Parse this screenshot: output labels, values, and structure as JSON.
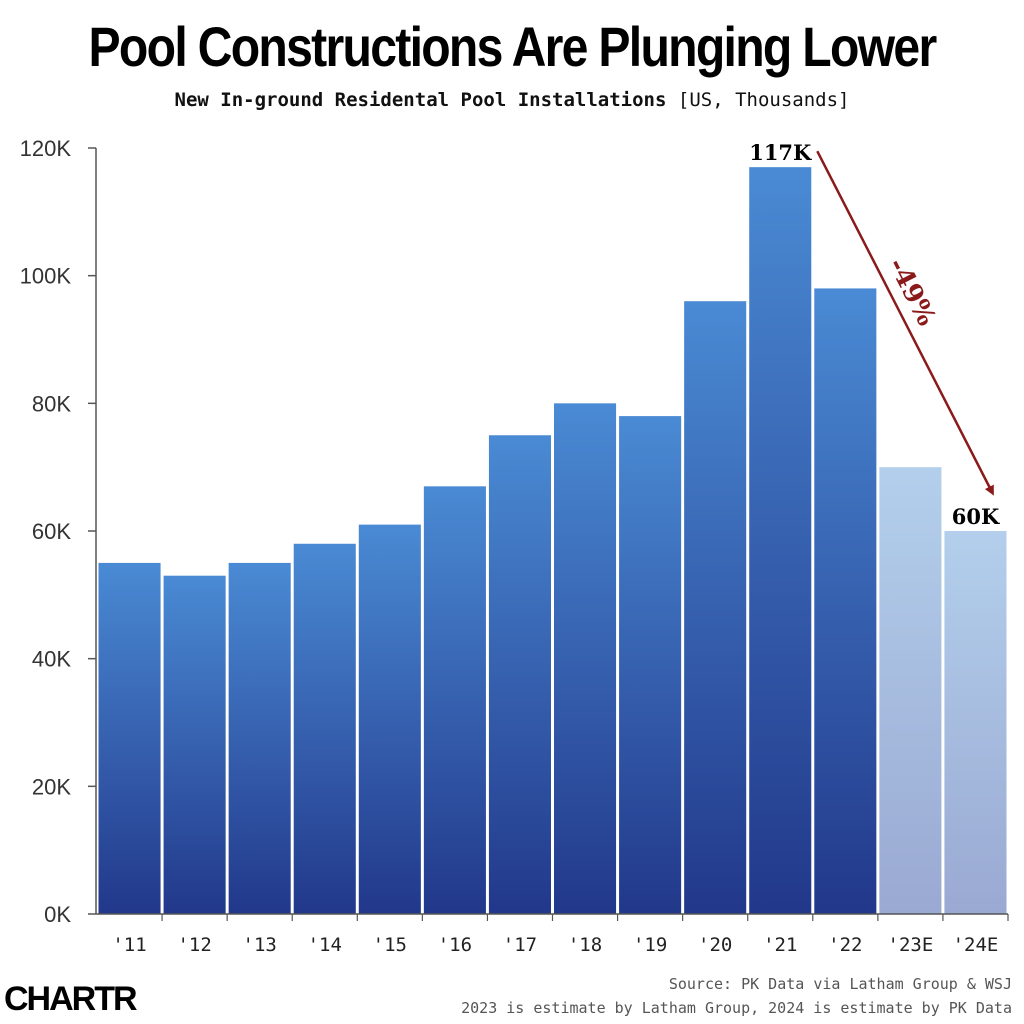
{
  "title": "Pool Constructions Are Plunging Lower",
  "subtitle_main": "New In-ground Residental Pool Installations",
  "subtitle_unit": "[US, Thousands]",
  "source": "Source: PK Data via Latham Group & WSJ",
  "note": "2023 is estimate by Latham Group, 2024 is estimate by PK Data",
  "logo": "CHARTR",
  "colors": {
    "actual_top": "#4a8ad4",
    "actual_bottom": "#22388a",
    "estimate_top": "#b3cfec",
    "estimate_bottom": "#9aa9d2",
    "arrow": "#8b1a1a"
  },
  "chart_data": {
    "type": "bar",
    "categories": [
      "'11",
      "'12",
      "'13",
      "'14",
      "'15",
      "'16",
      "'17",
      "'18",
      "'19",
      "'20",
      "'21",
      "'22",
      "'23E",
      "'24E"
    ],
    "values": [
      55,
      53,
      55,
      58,
      61,
      67,
      75,
      80,
      78,
      96,
      117,
      98,
      70,
      60
    ],
    "estimate": [
      false,
      false,
      false,
      false,
      false,
      false,
      false,
      false,
      false,
      false,
      false,
      false,
      true,
      true
    ],
    "ylim": [
      0,
      120
    ],
    "yticks": [
      0,
      20,
      40,
      60,
      80,
      100,
      120
    ],
    "ytick_labels": [
      "0K",
      "20K",
      "40K",
      "60K",
      "80K",
      "100K",
      "120K"
    ],
    "data_labels": [
      {
        "category": "'21",
        "text": "117K"
      },
      {
        "category": "'24E",
        "text": "60K"
      }
    ],
    "annotation": {
      "text": "-49%",
      "from": "'21",
      "to": "'24E"
    },
    "grid": false,
    "legend": "none"
  }
}
